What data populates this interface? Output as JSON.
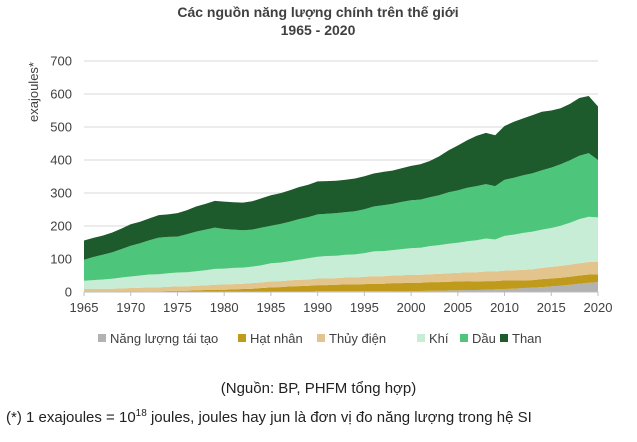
{
  "chart_data": {
    "type": "area",
    "stacked": true,
    "title_line1": "Các nguồn năng lượng chính trên thế giới",
    "title_line2": "1965 - 2020",
    "ylabel": "exajoules*",
    "xlabel": "",
    "ylim": [
      0,
      700
    ],
    "yticks": [
      0,
      100,
      200,
      300,
      400,
      500,
      600,
      700
    ],
    "xlim": [
      1965,
      2020
    ],
    "xticks": [
      1965,
      1970,
      1975,
      1980,
      1985,
      1990,
      1995,
      2000,
      2005,
      2010,
      2015,
      2020
    ],
    "grid": true,
    "legend_position": "bottom",
    "x": [
      1965,
      1966,
      1967,
      1968,
      1969,
      1970,
      1971,
      1972,
      1973,
      1974,
      1975,
      1976,
      1977,
      1978,
      1979,
      1980,
      1981,
      1982,
      1983,
      1984,
      1985,
      1986,
      1987,
      1988,
      1989,
      1990,
      1991,
      1992,
      1993,
      1994,
      1995,
      1996,
      1997,
      1998,
      1999,
      2000,
      2001,
      2002,
      2003,
      2004,
      2005,
      2006,
      2007,
      2008,
      2009,
      2010,
      2011,
      2012,
      2013,
      2014,
      2015,
      2016,
      2017,
      2018,
      2019,
      2020
    ],
    "series": [
      {
        "name": "Năng lượng tái tạo",
        "color": "#b2b2b2",
        "values": [
          0,
          0,
          0,
          0,
          0,
          0,
          0,
          0,
          0,
          0,
          0,
          0,
          0,
          0,
          0,
          0,
          0,
          0,
          0,
          0,
          0,
          0,
          1,
          1,
          1,
          2,
          2,
          2,
          2,
          2,
          2,
          2,
          2,
          3,
          3,
          3,
          3,
          4,
          4,
          5,
          5,
          6,
          6,
          7,
          8,
          9,
          10,
          12,
          13,
          15,
          17,
          19,
          22,
          25,
          28,
          30
        ]
      },
      {
        "name": "Hạt nhân",
        "color": "#c09a1a",
        "values": [
          0,
          0,
          0,
          0,
          0,
          1,
          1,
          2,
          2,
          3,
          4,
          4,
          5,
          6,
          7,
          7,
          8,
          9,
          10,
          12,
          14,
          15,
          16,
          17,
          18,
          19,
          19,
          20,
          21,
          21,
          22,
          23,
          23,
          24,
          24,
          25,
          25,
          26,
          26,
          26,
          27,
          27,
          26,
          26,
          25,
          26,
          25,
          23,
          23,
          24,
          24,
          24,
          24,
          25,
          25,
          24
        ]
      },
      {
        "name": "Thủy điện",
        "color": "#e2c48c",
        "values": [
          9,
          9,
          10,
          10,
          11,
          11,
          12,
          12,
          12,
          13,
          13,
          13,
          14,
          14,
          15,
          16,
          16,
          16,
          17,
          17,
          18,
          18,
          18,
          19,
          19,
          20,
          20,
          20,
          21,
          21,
          22,
          23,
          23,
          23,
          24,
          24,
          24,
          24,
          25,
          26,
          26,
          27,
          28,
          29,
          29,
          30,
          31,
          32,
          33,
          34,
          35,
          36,
          37,
          37,
          38,
          38
        ]
      },
      {
        "name": "Khí",
        "color": "#c7edd6",
        "values": [
          25,
          27,
          28,
          30,
          33,
          35,
          37,
          39,
          40,
          41,
          42,
          43,
          44,
          46,
          48,
          48,
          49,
          49,
          50,
          52,
          55,
          56,
          58,
          61,
          64,
          66,
          68,
          68,
          69,
          70,
          72,
          75,
          76,
          77,
          79,
          81,
          82,
          85,
          87,
          89,
          91,
          94,
          97,
          100,
          97,
          105,
          108,
          112,
          114,
          116,
          118,
          122,
          127,
          134,
          137,
          134
        ]
      },
      {
        "name": "Dầu",
        "color": "#4dc57a",
        "values": [
          64,
          70,
          75,
          80,
          86,
          93,
          98,
          104,
          111,
          110,
          109,
          115,
          120,
          123,
          125,
          120,
          116,
          113,
          112,
          114,
          114,
          117,
          120,
          123,
          125,
          128,
          128,
          129,
          129,
          131,
          133,
          136,
          139,
          140,
          143,
          145,
          146,
          148,
          151,
          156,
          159,
          162,
          164,
          165,
          162,
          170,
          172,
          175,
          177,
          180,
          183,
          186,
          189,
          192,
          193,
          174
        ]
      },
      {
        "name": "Than",
        "color": "#1d5a2c",
        "values": [
          58,
          58,
          58,
          60,
          62,
          65,
          65,
          66,
          68,
          68,
          71,
          73,
          76,
          78,
          81,
          83,
          83,
          84,
          86,
          89,
          92,
          93,
          95,
          97,
          98,
          100,
          99,
          98,
          98,
          99,
          100,
          100,
          101,
          101,
          102,
          104,
          107,
          110,
          118,
          127,
          136,
          144,
          152,
          155,
          154,
          163,
          170,
          172,
          176,
          177,
          173,
          170,
          171,
          175,
          173,
          162
        ]
      }
    ]
  },
  "notes": {
    "source": "(Nguồn: BP, PHFM tổng hợp)",
    "footnote_before": "(*) 1 exajoules = 10",
    "footnote_sup": "18",
    "footnote_after": " joules, joules hay jun là đơn vị đo năng lượng trong hệ SI"
  }
}
